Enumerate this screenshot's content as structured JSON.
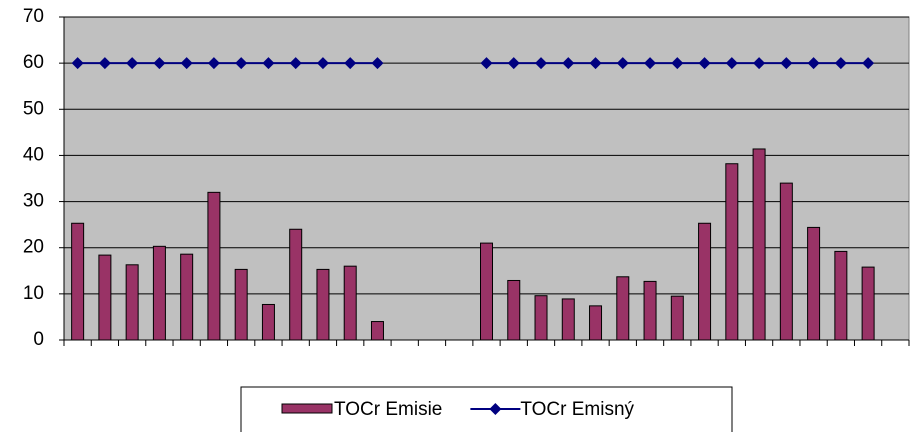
{
  "chart_data": {
    "type": "bar-line",
    "categories": [
      null,
      null,
      null,
      null,
      null,
      null,
      null,
      null,
      null,
      null,
      null,
      null,
      null,
      null,
      null,
      null,
      null,
      null,
      null,
      null,
      null,
      null,
      null,
      null,
      null,
      null,
      null,
      null,
      null,
      null,
      null
    ],
    "series": [
      {
        "name": "TOCr Emisie",
        "type": "bar",
        "color": "#993366",
        "values": [
          25.3,
          18.4,
          16.3,
          20.3,
          18.6,
          32,
          15.3,
          7.7,
          24,
          15.3,
          16,
          4,
          null,
          null,
          null,
          21,
          12.9,
          9.6,
          8.9,
          7.4,
          13.7,
          12.7,
          9.5,
          25.3,
          38.2,
          41.4,
          34,
          24.4,
          19.2,
          15.8,
          null
        ]
      },
      {
        "name": "TOCr Emisný",
        "type": "line",
        "color": "#000080",
        "values": [
          60,
          60,
          60,
          60,
          60,
          60,
          60,
          60,
          60,
          60,
          60,
          60,
          null,
          null,
          null,
          60,
          60,
          60,
          60,
          60,
          60,
          60,
          60,
          60,
          60,
          60,
          60,
          60,
          60,
          60,
          null
        ]
      }
    ],
    "ylim": [
      0,
      70
    ],
    "yticks": [
      0,
      10,
      20,
      30,
      40,
      50,
      60,
      70
    ],
    "grid": true,
    "legend": "bottom"
  }
}
